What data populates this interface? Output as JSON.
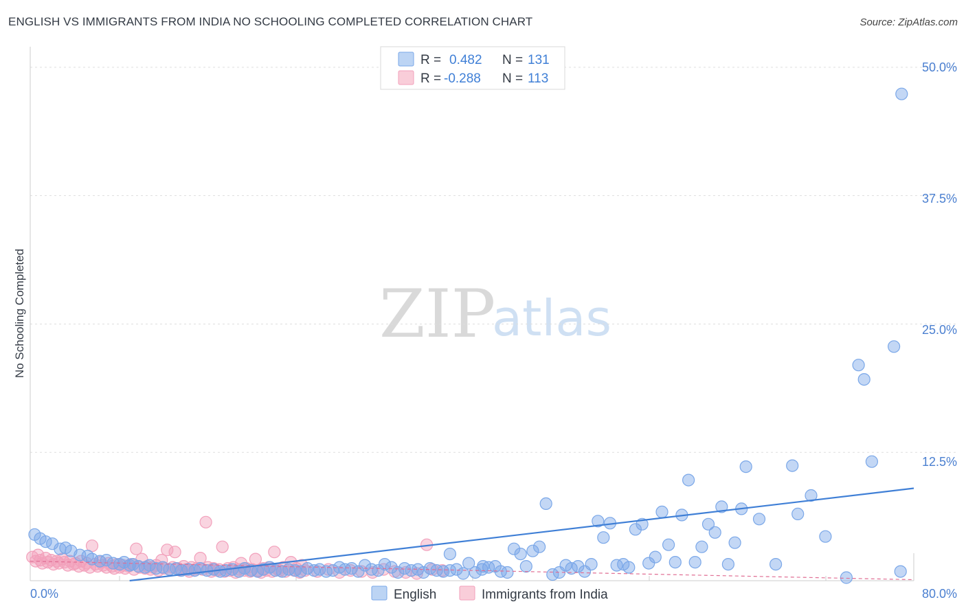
{
  "header": {
    "title": "ENGLISH VS IMMIGRANTS FROM INDIA NO SCHOOLING COMPLETED CORRELATION CHART",
    "source": "Source: ZipAtlas.com"
  },
  "watermark": {
    "zip": "ZIP",
    "atlas": "atlas"
  },
  "colors": {
    "english": "#7aa7e8",
    "english_line": "#3f7fd6",
    "india": "#f2a0bb",
    "india_line": "#e06d93",
    "tick": "#4a7fd0"
  },
  "legend": {
    "rows": [
      {
        "r_label": "R =",
        "r_value": "0.482",
        "n_label": "N =",
        "n_value": "131"
      },
      {
        "r_label": "R =",
        "r_value": "-0.288",
        "n_label": "N =",
        "n_value": "113"
      }
    ]
  },
  "chart_data": {
    "type": "scatter",
    "title": "ENGLISH VS IMMIGRANTS FROM INDIA NO SCHOOLING COMPLETED CORRELATION CHART",
    "xlabel": "",
    "ylabel": "No Schooling Completed",
    "xlim": [
      0,
      80
    ],
    "ylim": [
      0,
      52
    ],
    "x_tick_labels": [
      "0.0%",
      "80.0%"
    ],
    "y_ticks": [
      12.5,
      25.0,
      37.5,
      50.0
    ],
    "y_tick_labels": [
      "12.5%",
      "25.0%",
      "37.5%",
      "50.0%"
    ],
    "grid": true,
    "series": [
      {
        "name": "English",
        "trend": {
          "x": [
            9,
            80
          ],
          "y": [
            0.0,
            9.0
          ]
        },
        "points": [
          [
            0.4,
            4.5
          ],
          [
            0.9,
            4.1
          ],
          [
            1.4,
            3.8
          ],
          [
            2.0,
            3.6
          ],
          [
            2.7,
            3.1
          ],
          [
            3.2,
            3.2
          ],
          [
            3.7,
            2.9
          ],
          [
            4.5,
            2.5
          ],
          [
            5.2,
            2.4
          ],
          [
            5.6,
            2.1
          ],
          [
            6.3,
            1.9
          ],
          [
            6.9,
            2.0
          ],
          [
            7.5,
            1.7
          ],
          [
            8.1,
            1.6
          ],
          [
            8.5,
            1.8
          ],
          [
            9.0,
            1.5
          ],
          [
            9.3,
            1.6
          ],
          [
            9.8,
            1.4
          ],
          [
            10.4,
            1.3
          ],
          [
            10.8,
            1.5
          ],
          [
            11.4,
            1.2
          ],
          [
            12.0,
            1.3
          ],
          [
            12.6,
            1.1
          ],
          [
            13.2,
            1.2
          ],
          [
            13.7,
            1.0
          ],
          [
            14.3,
            1.1
          ],
          [
            14.9,
            1.0
          ],
          [
            15.4,
            1.2
          ],
          [
            16.0,
            1.0
          ],
          [
            16.6,
            1.1
          ],
          [
            17.2,
            0.9
          ],
          [
            17.7,
            1.0
          ],
          [
            18.3,
            1.1
          ],
          [
            18.9,
            0.9
          ],
          [
            19.4,
            1.2
          ],
          [
            20.0,
            1.0
          ],
          [
            20.6,
            0.9
          ],
          [
            21.1,
            1.1
          ],
          [
            21.7,
            1.3
          ],
          [
            22.2,
            1.0
          ],
          [
            22.8,
            0.9
          ],
          [
            23.4,
            1.1
          ],
          [
            24.0,
            1.0
          ],
          [
            24.5,
            0.9
          ],
          [
            25.1,
            1.2
          ],
          [
            25.7,
            1.0
          ],
          [
            26.2,
            1.1
          ],
          [
            26.8,
            0.9
          ],
          [
            27.4,
            1.0
          ],
          [
            28.0,
            1.3
          ],
          [
            28.5,
            1.1
          ],
          [
            29.1,
            1.2
          ],
          [
            29.7,
            0.9
          ],
          [
            30.3,
            1.5
          ],
          [
            30.9,
            1.1
          ],
          [
            31.5,
            1.0
          ],
          [
            32.1,
            1.6
          ],
          [
            32.7,
            1.3
          ],
          [
            33.3,
            0.8
          ],
          [
            33.9,
            1.2
          ],
          [
            34.5,
            1.0
          ],
          [
            35.1,
            1.1
          ],
          [
            35.6,
            0.8
          ],
          [
            36.2,
            1.2
          ],
          [
            36.8,
            1.0
          ],
          [
            37.4,
            0.9
          ],
          [
            38.0,
            2.6
          ],
          [
            38.6,
            1.1
          ],
          [
            39.2,
            0.7
          ],
          [
            39.7,
            1.7
          ],
          [
            40.3,
            0.8
          ],
          [
            40.9,
            1.1
          ],
          [
            41.5,
            1.3
          ],
          [
            42.1,
            1.4
          ],
          [
            42.6,
            0.9
          ],
          [
            43.2,
            0.8
          ],
          [
            43.8,
            3.1
          ],
          [
            44.4,
            2.6
          ],
          [
            44.9,
            1.4
          ],
          [
            45.5,
            2.9
          ],
          [
            46.1,
            3.3
          ],
          [
            46.7,
            7.5
          ],
          [
            47.3,
            0.6
          ],
          [
            47.9,
            0.8
          ],
          [
            48.5,
            1.5
          ],
          [
            49.0,
            1.2
          ],
          [
            49.6,
            1.4
          ],
          [
            50.2,
            0.9
          ],
          [
            50.8,
            1.6
          ],
          [
            51.4,
            5.8
          ],
          [
            51.9,
            4.2
          ],
          [
            52.5,
            5.6
          ],
          [
            53.1,
            1.5
          ],
          [
            53.7,
            1.6
          ],
          [
            54.2,
            1.3
          ],
          [
            54.8,
            5.0
          ],
          [
            55.4,
            5.5
          ],
          [
            56.0,
            1.7
          ],
          [
            56.6,
            2.3
          ],
          [
            57.2,
            6.7
          ],
          [
            57.8,
            3.5
          ],
          [
            58.4,
            1.8
          ],
          [
            59.0,
            6.4
          ],
          [
            59.6,
            9.8
          ],
          [
            60.2,
            1.8
          ],
          [
            60.8,
            3.3
          ],
          [
            61.4,
            5.5
          ],
          [
            62.0,
            4.7
          ],
          [
            62.6,
            7.2
          ],
          [
            63.2,
            1.6
          ],
          [
            63.8,
            3.7
          ],
          [
            64.4,
            7.0
          ],
          [
            64.8,
            11.1
          ],
          [
            66.0,
            6.0
          ],
          [
            67.5,
            1.6
          ],
          [
            69.0,
            11.2
          ],
          [
            69.5,
            6.5
          ],
          [
            70.7,
            8.3
          ],
          [
            72.0,
            4.3
          ],
          [
            73.9,
            0.3
          ],
          [
            75.0,
            21.0
          ],
          [
            75.5,
            19.6
          ],
          [
            76.2,
            11.6
          ],
          [
            78.2,
            22.8
          ],
          [
            78.8,
            0.9
          ],
          [
            78.9,
            47.4
          ],
          [
            38.0,
            1.0
          ],
          [
            41.0,
            1.4
          ]
        ]
      },
      {
        "name": "Immigrants from India",
        "trend": {
          "x": [
            0,
            80
          ],
          "y": [
            1.9,
            0.1
          ]
        },
        "points": [
          [
            0.2,
            2.3
          ],
          [
            0.5,
            1.9
          ],
          [
            0.7,
            2.5
          ],
          [
            0.9,
            2.0
          ],
          [
            1.1,
            1.7
          ],
          [
            1.4,
            2.2
          ],
          [
            1.6,
            1.8
          ],
          [
            1.9,
            2.0
          ],
          [
            2.1,
            1.6
          ],
          [
            2.4,
            1.9
          ],
          [
            2.6,
            1.7
          ],
          [
            2.9,
            2.1
          ],
          [
            3.1,
            1.8
          ],
          [
            3.4,
            1.5
          ],
          [
            3.6,
            1.9
          ],
          [
            3.9,
            1.6
          ],
          [
            4.1,
            1.7
          ],
          [
            4.4,
            1.4
          ],
          [
            4.6,
            1.9
          ],
          [
            4.9,
            1.5
          ],
          [
            5.1,
            1.7
          ],
          [
            5.4,
            1.3
          ],
          [
            5.6,
            3.4
          ],
          [
            5.9,
            1.6
          ],
          [
            6.1,
            1.4
          ],
          [
            6.4,
            1.8
          ],
          [
            6.6,
            1.5
          ],
          [
            6.9,
            1.3
          ],
          [
            7.1,
            1.7
          ],
          [
            7.4,
            1.4
          ],
          [
            7.6,
            1.2
          ],
          [
            7.9,
            1.6
          ],
          [
            8.1,
            1.3
          ],
          [
            8.4,
            1.5
          ],
          [
            8.6,
            1.2
          ],
          [
            8.9,
            1.4
          ],
          [
            9.1,
            1.6
          ],
          [
            9.4,
            1.1
          ],
          [
            9.6,
            3.1
          ],
          [
            9.9,
            1.3
          ],
          [
            10.1,
            2.1
          ],
          [
            10.4,
            1.2
          ],
          [
            10.6,
            1.4
          ],
          [
            10.9,
            1.1
          ],
          [
            11.1,
            1.3
          ],
          [
            11.4,
            1.5
          ],
          [
            11.6,
            1.0
          ],
          [
            11.9,
            2.0
          ],
          [
            12.1,
            1.2
          ],
          [
            12.4,
            3.0
          ],
          [
            12.6,
            1.1
          ],
          [
            12.9,
            1.3
          ],
          [
            13.1,
            2.8
          ],
          [
            13.4,
            1.2
          ],
          [
            13.6,
            1.0
          ],
          [
            13.9,
            1.4
          ],
          [
            14.1,
            1.1
          ],
          [
            14.4,
            0.9
          ],
          [
            14.6,
            1.3
          ],
          [
            14.9,
            1.0
          ],
          [
            15.1,
            1.2
          ],
          [
            15.4,
            2.2
          ],
          [
            15.6,
            1.1
          ],
          [
            15.9,
            5.7
          ],
          [
            16.1,
            1.3
          ],
          [
            16.4,
            0.9
          ],
          [
            16.6,
            1.2
          ],
          [
            16.9,
            1.0
          ],
          [
            17.1,
            1.1
          ],
          [
            17.4,
            3.3
          ],
          [
            17.6,
            0.9
          ],
          [
            17.9,
            1.2
          ],
          [
            18.1,
            1.0
          ],
          [
            18.4,
            1.3
          ],
          [
            18.6,
            0.8
          ],
          [
            18.9,
            1.1
          ],
          [
            19.1,
            1.7
          ],
          [
            19.4,
            1.0
          ],
          [
            19.6,
            1.2
          ],
          [
            19.9,
            0.9
          ],
          [
            20.1,
            1.1
          ],
          [
            20.4,
            2.1
          ],
          [
            20.6,
            1.0
          ],
          [
            20.9,
            0.8
          ],
          [
            21.1,
            1.2
          ],
          [
            21.4,
            1.0
          ],
          [
            21.6,
            1.3
          ],
          [
            21.9,
            0.9
          ],
          [
            22.1,
            2.8
          ],
          [
            22.4,
            1.1
          ],
          [
            22.6,
            1.0
          ],
          [
            22.9,
            1.3
          ],
          [
            23.1,
            0.9
          ],
          [
            23.4,
            1.1
          ],
          [
            23.6,
            1.8
          ],
          [
            23.9,
            1.0
          ],
          [
            24.1,
            1.2
          ],
          [
            24.4,
            0.8
          ],
          [
            24.6,
            1.5
          ],
          [
            24.9,
            1.0
          ],
          [
            26.0,
            0.9
          ],
          [
            27.0,
            1.1
          ],
          [
            28.0,
            0.8
          ],
          [
            29.0,
            1.0
          ],
          [
            30.0,
            0.9
          ],
          [
            31.0,
            0.8
          ],
          [
            32.0,
            1.1
          ],
          [
            33.0,
            0.9
          ],
          [
            34.0,
            0.8
          ],
          [
            35.0,
            0.7
          ],
          [
            35.9,
            3.5
          ],
          [
            36.4,
            1.1
          ],
          [
            37.3,
            1.0
          ]
        ]
      }
    ]
  },
  "bottom_legend": {
    "english": "English",
    "india": "Immigrants from India"
  }
}
